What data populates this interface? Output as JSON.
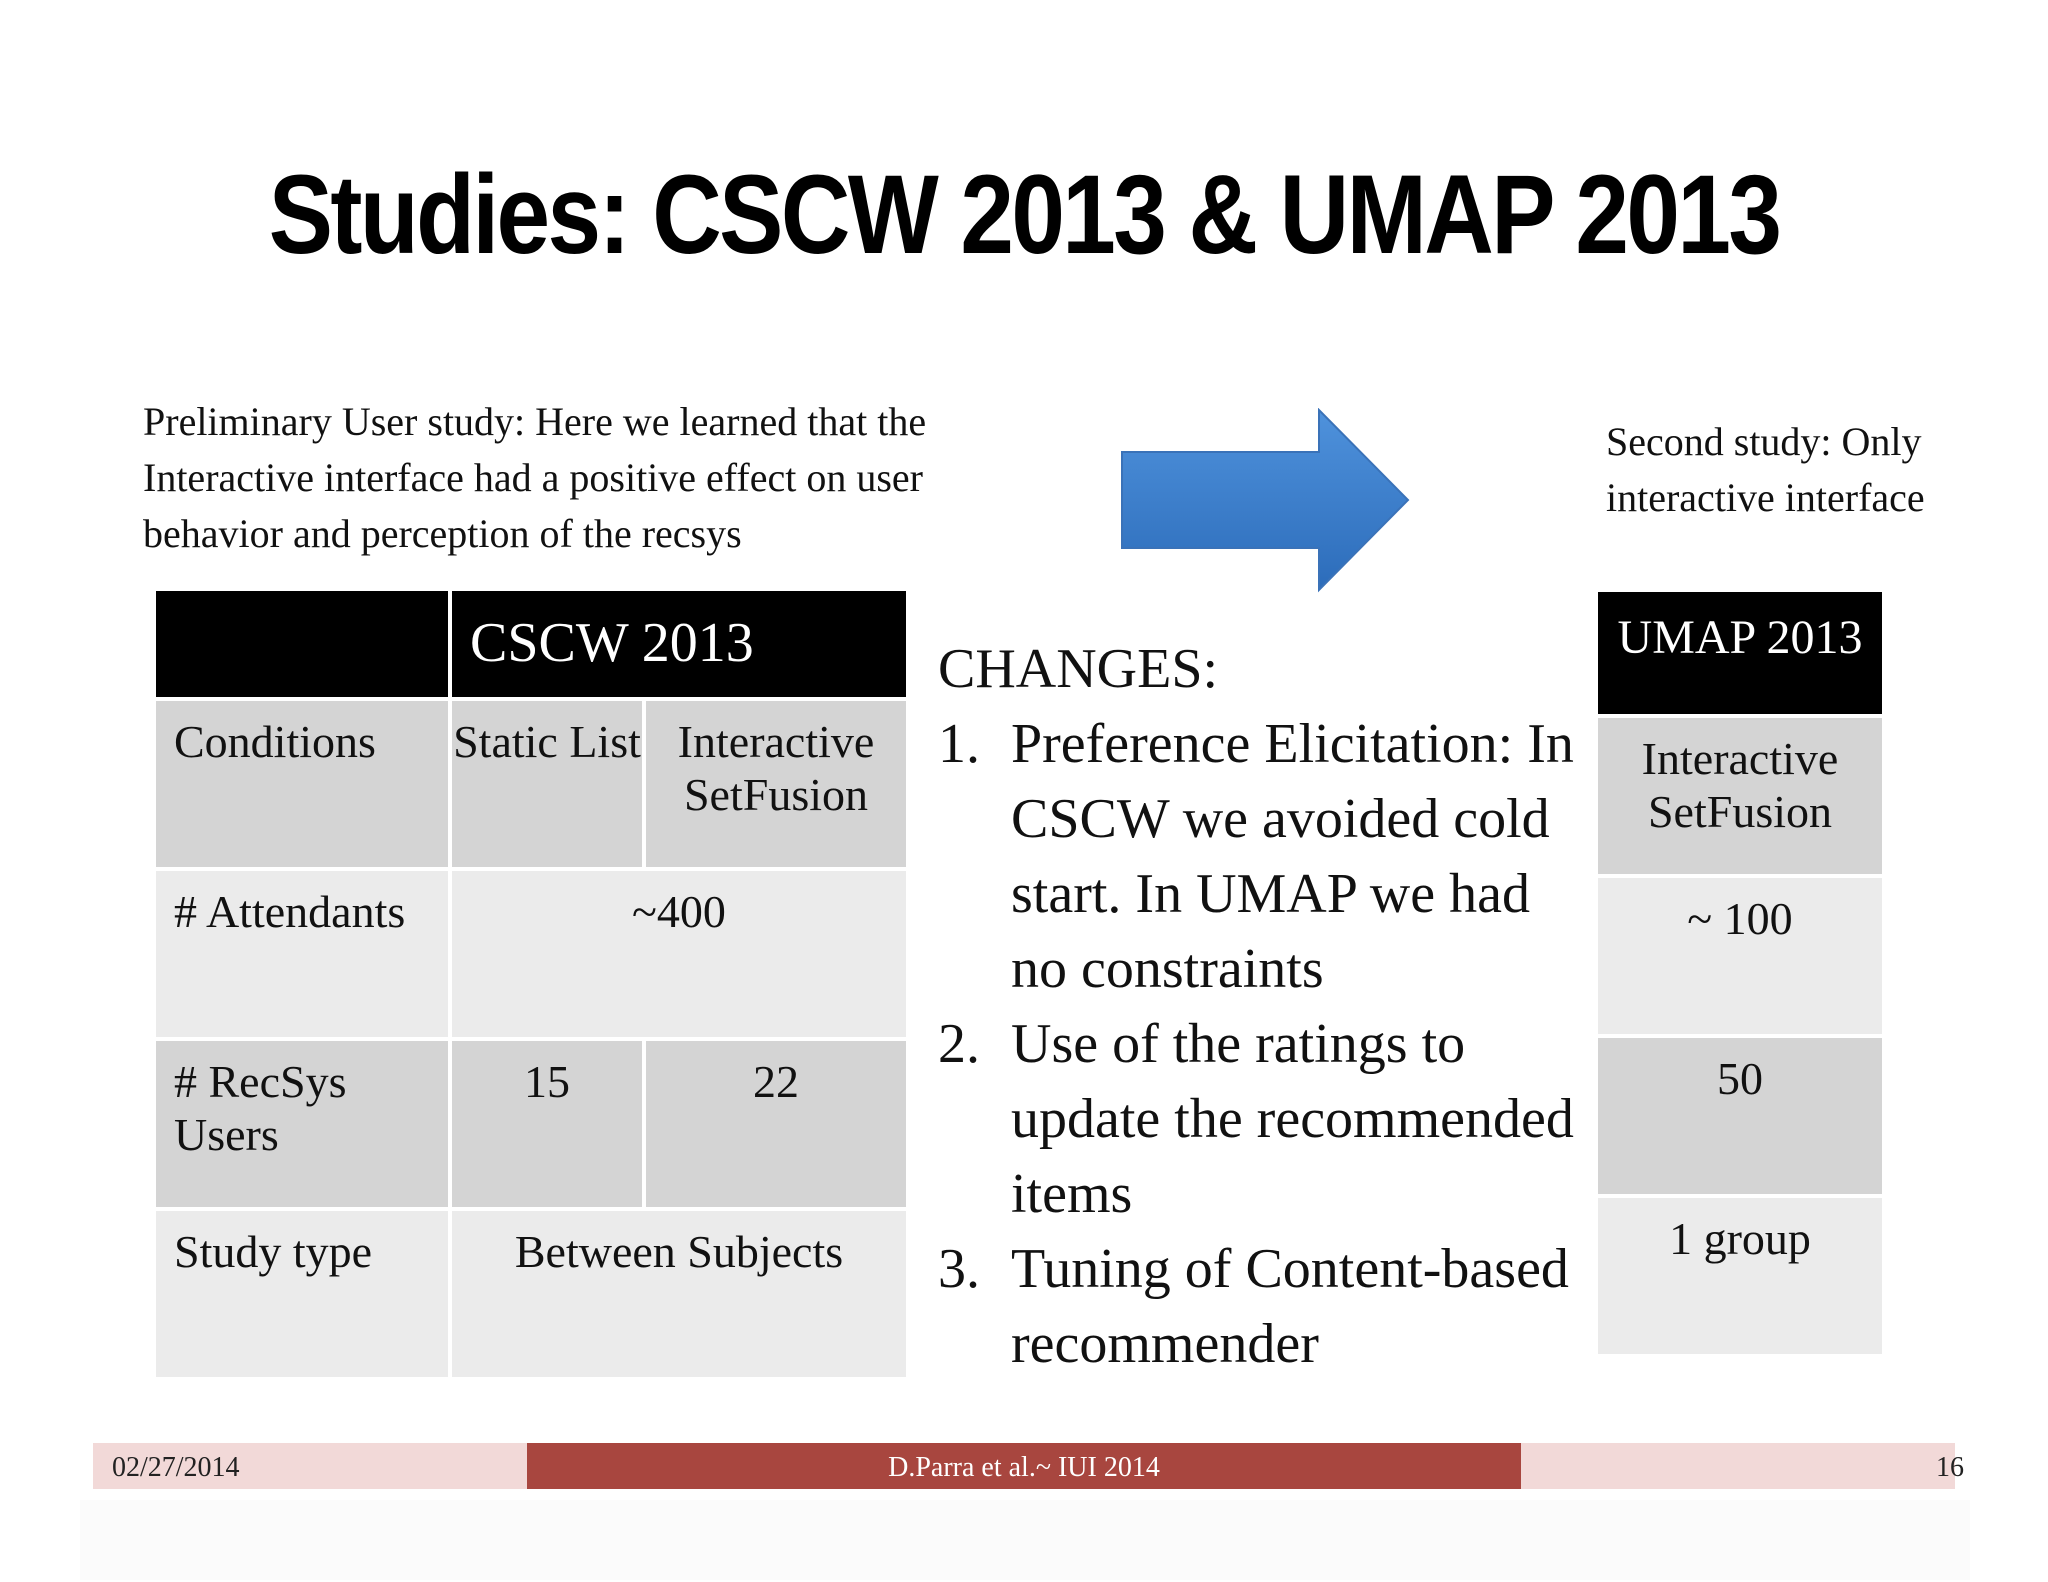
{
  "slide": {
    "title": "Studies: CSCW 2013 & UMAP 2013",
    "intro_left": "Preliminary User study: Here we learned that the Interactive interface had a positive effect on user behavior and perception of the recsys",
    "intro_right": "Second study: Only interactive interface"
  },
  "cscw_table": {
    "header": "CSCW 2013",
    "rows": {
      "conditions": {
        "label": "Conditions",
        "static": "Static List",
        "interactive": "Interactive SetFusion"
      },
      "attendants": {
        "label": "# Attendants",
        "value": "~400"
      },
      "recsys_users": {
        "label": "# RecSys Users",
        "static": "15",
        "interactive": "22"
      },
      "study_type": {
        "label": "Study type",
        "value": "Between Subjects"
      }
    }
  },
  "umap_table": {
    "header": "UMAP 2013",
    "conditions": "Interactive SetFusion",
    "attendants": "~ 100",
    "recsys_users": "50",
    "study_type": "1 group"
  },
  "changes": {
    "heading": "CHANGES:",
    "items": [
      {
        "num": "1.",
        "text": "Preference Elicitation: In CSCW we avoided cold start. In UMAP we had no constraints"
      },
      {
        "num": "2.",
        "text": "Use of the ratings to update the recommended items"
      },
      {
        "num": "3.",
        "text": "Tuning of Content-based recommender"
      }
    ]
  },
  "footer": {
    "date": "02/27/2014",
    "author": "D.Parra et al.~ IUI 2014",
    "page": "16"
  },
  "colors": {
    "footer_band": "#f2d9d8",
    "footer_center": "#a8463f",
    "arrow_blue": "#3b7fce"
  }
}
